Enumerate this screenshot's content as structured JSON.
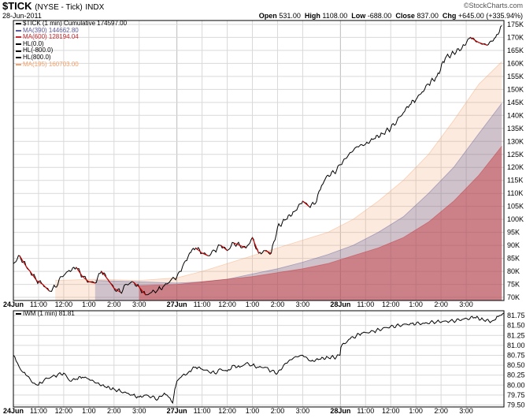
{
  "header": {
    "symbol": "$TICK",
    "exchange": "(NYSE - Tick)",
    "kind": "INDX",
    "date": "28-Jun-2011",
    "brand": "©StockCharts.com",
    "open_label": "Open",
    "open": "531.00",
    "high_label": "High",
    "high": "1108.00",
    "low_label": "Low",
    "low": "-688.00",
    "close_label": "Close",
    "close": "837.00",
    "chg_label": "Chg",
    "chg": "+645.00 (+335.94%)"
  },
  "colors": {
    "line": "#000000",
    "red_mark": "#cc0000",
    "ma390": "#5b5b9c",
    "ma600": "#c8282d",
    "ma195": "#f3a06a",
    "grid": "#d9d9d9"
  },
  "chart_data": [
    {
      "type": "line",
      "title": "$TICK (1 min) Cumulative 174597.00",
      "legend": [
        {
          "name": "$TICK (1 min) Cumulative 174597.00",
          "color": "#000000",
          "value": "174597.00"
        },
        {
          "name": "MA(390) 144662.80",
          "color": "#5b5b9c",
          "value": "144662.80"
        },
        {
          "name": "MA(600) 128194.04",
          "color": "#c8282d",
          "value": "128194.04"
        },
        {
          "name": "HL(0.0)",
          "color": "#000000"
        },
        {
          "name": "HL(-800.0)",
          "color": "#000000"
        },
        {
          "name": "HL(800.0)",
          "color": "#000000"
        },
        {
          "name": "MA(195) 160703.00",
          "color": "#f3a06a",
          "value": "160703.00"
        }
      ],
      "ylim": [
        68800,
        176500
      ],
      "yticks": [
        70000,
        75000,
        80000,
        85000,
        90000,
        95000,
        100000,
        105000,
        110000,
        115000,
        120000,
        125000,
        130000,
        135000,
        140000,
        145000,
        150000,
        155000,
        160000,
        165000,
        170000,
        175000
      ],
      "ytick_labels": [
        "70K",
        "75K",
        "80K",
        "85K",
        "90K",
        "95K",
        "100K",
        "105K",
        "110K",
        "115K",
        "120K",
        "125K",
        "130K",
        "135K",
        "140K",
        "145K",
        "150K",
        "155K",
        "160K",
        "165K",
        "170K",
        "175K"
      ],
      "xlim": [
        0,
        1170
      ],
      "xticks": [
        0,
        60,
        120,
        180,
        240,
        300,
        390,
        450,
        510,
        570,
        630,
        690,
        780,
        840,
        900,
        960,
        1020,
        1080
      ],
      "xtick_labels": [
        "24Jun",
        "11:00",
        "12:00",
        "1:00",
        "2:00",
        "3:00",
        "27Jun",
        "11:00",
        "12:00",
        "1:00",
        "2:00",
        "3:00",
        "28Jun",
        "11:00",
        "12:00",
        "1:00",
        "2:00",
        "3:00"
      ],
      "series": [
        {
          "name": "$TICK (1 min) Cumulative",
          "x": [
            0,
            15,
            30,
            40,
            55,
            70,
            85,
            100,
            115,
            130,
            150,
            165,
            180,
            195,
            210,
            225,
            240,
            255,
            270,
            285,
            300,
            315,
            330,
            345,
            360,
            375,
            390,
            400,
            410,
            420,
            435,
            450,
            465,
            480,
            495,
            510,
            525,
            540,
            555,
            570,
            585,
            600,
            615,
            630,
            650,
            670,
            690,
            705,
            720,
            735,
            750,
            765,
            780,
            800,
            820,
            840,
            860,
            880,
            900,
            915,
            930,
            945,
            960,
            975,
            990,
            1010,
            1030,
            1050,
            1070,
            1090,
            1110,
            1130,
            1150,
            1165
          ],
          "values": [
            83000,
            86000,
            82000,
            80000,
            76500,
            75000,
            72500,
            74000,
            78000,
            80000,
            81500,
            78000,
            76000,
            75500,
            80000,
            77000,
            73500,
            72000,
            75000,
            76000,
            74000,
            71000,
            72000,
            73000,
            74500,
            76500,
            78000,
            80000,
            84000,
            87000,
            89000,
            87000,
            86000,
            88000,
            90000,
            88000,
            91000,
            90000,
            89000,
            93000,
            87000,
            88000,
            87000,
            97000,
            100000,
            103000,
            107000,
            105000,
            106000,
            113000,
            117000,
            118000,
            121000,
            125000,
            128000,
            129000,
            131000,
            133000,
            135000,
            138000,
            141000,
            144000,
            146000,
            149000,
            152000,
            155000,
            162000,
            164000,
            166000,
            170000,
            168000,
            167000,
            170000,
            174597
          ]
        },
        {
          "name": "MA(195)",
          "x": [
            100,
            200,
            300,
            390,
            450,
            510,
            570,
            630,
            690,
            750,
            810,
            870,
            930,
            990,
            1050,
            1110,
            1165
          ],
          "values": [
            76500,
            77000,
            76500,
            77500,
            80000,
            83000,
            86000,
            89000,
            92000,
            95000,
            100000,
            107000,
            115000,
            125000,
            138000,
            152000,
            160703
          ]
        },
        {
          "name": "MA(390)",
          "x": [
            195,
            300,
            390,
            450,
            510,
            570,
            630,
            690,
            750,
            810,
            870,
            930,
            990,
            1050,
            1110,
            1165
          ],
          "values": [
            76500,
            76000,
            75500,
            76000,
            77000,
            79000,
            81000,
            83500,
            86500,
            90000,
            95000,
            101000,
            110000,
            120000,
            133000,
            144662.8
          ]
        },
        {
          "name": "MA(600)",
          "x": [
            300,
            390,
            450,
            510,
            570,
            630,
            690,
            750,
            810,
            870,
            930,
            990,
            1050,
            1110,
            1165
          ],
          "values": [
            74500,
            75000,
            76000,
            77000,
            78000,
            79500,
            81000,
            83000,
            86000,
            89000,
            93000,
            99000,
            107000,
            117000,
            128194.04
          ]
        }
      ]
    },
    {
      "type": "line",
      "title": "IWM (1 min) 81.81",
      "legend": [
        {
          "name": "IWM (1 min) 81.81",
          "color": "#000000",
          "value": "81.81"
        }
      ],
      "ylim": [
        79.45,
        81.87
      ],
      "yticks": [
        79.5,
        79.75,
        80.0,
        80.25,
        80.5,
        80.75,
        81.0,
        81.25,
        81.5,
        81.75
      ],
      "ytick_labels": [
        "79.50",
        "79.75",
        "80.00",
        "80.25",
        "80.50",
        "80.75",
        "81.00",
        "81.25",
        "81.50",
        "81.75"
      ],
      "xlim": [
        0,
        1170
      ],
      "xticks": [
        0,
        60,
        120,
        180,
        240,
        300,
        390,
        450,
        510,
        570,
        630,
        690,
        780,
        840,
        900,
        960,
        1020,
        1080
      ],
      "xtick_labels": [
        "24Jun",
        "11:00",
        "12:00",
        "1:00",
        "2:00",
        "3:00",
        "27Jun",
        "11:00",
        "12:00",
        "1:00",
        "2:00",
        "3:00",
        "28Jun",
        "11:00",
        "12:00",
        "1:00",
        "2:00",
        "3:00"
      ],
      "series": [
        {
          "name": "IWM (1 min)",
          "x": [
            0,
            10,
            20,
            30,
            40,
            50,
            60,
            75,
            90,
            105,
            120,
            135,
            150,
            165,
            180,
            200,
            220,
            240,
            255,
            270,
            285,
            300,
            315,
            330,
            345,
            360,
            370,
            380,
            385,
            390,
            400,
            410,
            420,
            435,
            450,
            465,
            480,
            495,
            510,
            525,
            540,
            555,
            570,
            585,
            600,
            615,
            630,
            650,
            670,
            690,
            710,
            730,
            750,
            770,
            779,
            781,
            800,
            830,
            860,
            890,
            920,
            950,
            980,
            1010,
            1040,
            1070,
            1100,
            1120,
            1140,
            1150,
            1160,
            1169
          ],
          "values": [
            80.75,
            80.55,
            80.35,
            80.25,
            80.15,
            80.05,
            80.0,
            80.15,
            80.2,
            80.25,
            80.3,
            80.1,
            80.15,
            80.2,
            80.15,
            80.05,
            79.95,
            79.9,
            79.85,
            79.8,
            79.75,
            79.7,
            79.75,
            79.7,
            79.65,
            79.8,
            79.7,
            79.55,
            79.9,
            80.1,
            80.2,
            80.25,
            80.35,
            80.45,
            80.4,
            80.35,
            80.3,
            80.4,
            80.35,
            80.5,
            80.45,
            80.55,
            80.5,
            80.45,
            80.45,
            80.35,
            80.3,
            80.55,
            80.7,
            80.75,
            80.6,
            80.65,
            80.7,
            80.7,
            80.75,
            80.95,
            81.15,
            81.3,
            81.35,
            81.45,
            81.5,
            81.55,
            81.55,
            81.6,
            81.6,
            81.65,
            81.7,
            81.65,
            81.6,
            81.65,
            81.75,
            81.81
          ]
        }
      ]
    }
  ]
}
